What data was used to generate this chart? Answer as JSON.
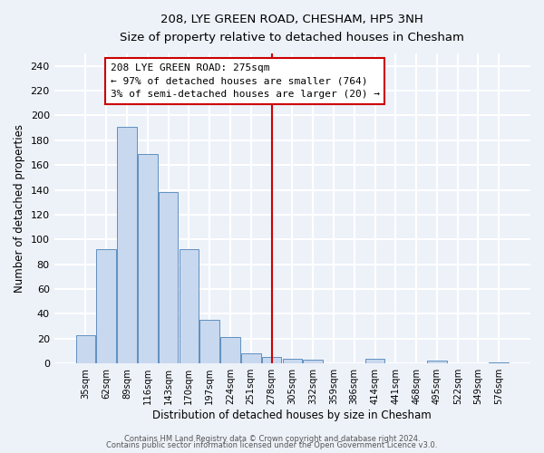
{
  "title": "208, LYE GREEN ROAD, CHESHAM, HP5 3NH",
  "subtitle": "Size of property relative to detached houses in Chesham",
  "xlabel": "Distribution of detached houses by size in Chesham",
  "ylabel": "Number of detached properties",
  "bar_labels": [
    "35sqm",
    "62sqm",
    "89sqm",
    "116sqm",
    "143sqm",
    "170sqm",
    "197sqm",
    "224sqm",
    "251sqm",
    "278sqm",
    "305sqm",
    "332sqm",
    "359sqm",
    "386sqm",
    "414sqm",
    "441sqm",
    "468sqm",
    "495sqm",
    "522sqm",
    "549sqm",
    "576sqm"
  ],
  "bar_values": [
    23,
    92,
    191,
    169,
    138,
    92,
    35,
    21,
    8,
    5,
    4,
    3,
    0,
    0,
    4,
    0,
    0,
    2,
    0,
    0,
    1
  ],
  "bar_color": "#c8d8ee",
  "bar_edge_color": "#6090c0",
  "vline_x": 9.0,
  "vline_color": "#cc0000",
  "annotation_title": "208 LYE GREEN ROAD: 275sqm",
  "annotation_line1": "← 97% of detached houses are smaller (764)",
  "annotation_line2": "3% of semi-detached houses are larger (20) →",
  "ylim": [
    0,
    250
  ],
  "yticks": [
    0,
    20,
    40,
    60,
    80,
    100,
    120,
    140,
    160,
    180,
    200,
    220,
    240
  ],
  "footer1": "Contains HM Land Registry data © Crown copyright and database right 2024.",
  "footer2": "Contains public sector information licensed under the Open Government Licence v3.0.",
  "bg_color": "#edf2f9",
  "grid_color": "white"
}
